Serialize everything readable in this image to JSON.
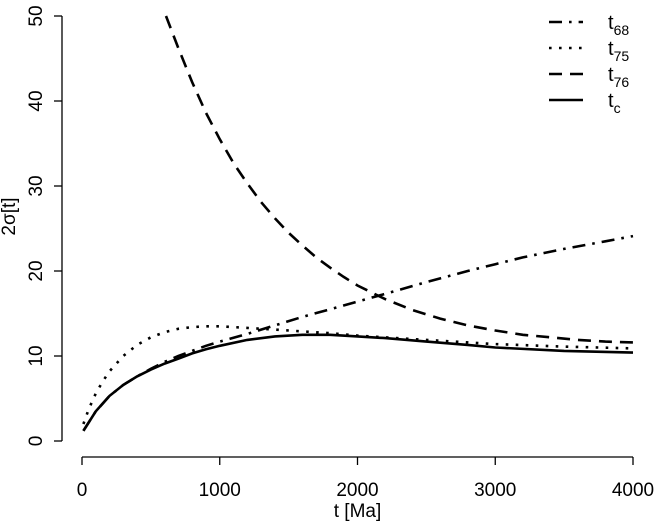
{
  "chart_data": {
    "type": "line",
    "xlabel": "t [Ma]",
    "ylabel": "2σ[t]",
    "xlim": [
      0,
      4000
    ],
    "ylim": [
      0,
      50
    ],
    "xticks": [
      0,
      1000,
      2000,
      3000,
      4000
    ],
    "yticks": [
      0,
      10,
      20,
      30,
      40,
      50
    ],
    "legend_position": "top-right",
    "grid": false,
    "series": [
      {
        "name": "t68",
        "name_base": "t",
        "name_sub": "68",
        "dash": "dash-dot",
        "x": [
          10,
          100,
          200,
          300,
          400,
          500,
          600,
          700,
          800,
          900,
          1000,
          1200,
          1400,
          1600,
          1800,
          2000,
          2200,
          2500,
          2800,
          3000,
          3200,
          3500,
          3800,
          4000
        ],
        "y": [
          1.2,
          3.5,
          5.3,
          6.6,
          7.6,
          8.5,
          9.3,
          10.0,
          10.6,
          11.2,
          11.7,
          12.6,
          13.6,
          14.6,
          15.5,
          16.4,
          17.3,
          18.7,
          20.0,
          20.8,
          21.6,
          22.6,
          23.5,
          24.1
        ]
      },
      {
        "name": "t75",
        "name_base": "t",
        "name_sub": "75",
        "dash": "dotted",
        "x": [
          10,
          50,
          100,
          150,
          200,
          300,
          400,
          500,
          600,
          700,
          800,
          900,
          1000,
          1200,
          1400,
          1600,
          1800,
          2000,
          2500,
          3000,
          3500,
          4000
        ],
        "y": [
          2.0,
          3.8,
          5.6,
          7.0,
          8.2,
          10.0,
          11.3,
          12.2,
          12.8,
          13.2,
          13.4,
          13.5,
          13.5,
          13.3,
          13.1,
          12.9,
          12.7,
          12.4,
          11.9,
          11.4,
          11.1,
          10.9
        ]
      },
      {
        "name": "t76",
        "name_base": "t",
        "name_sub": "76",
        "dash": "dashed",
        "x": [
          610,
          700,
          800,
          900,
          1000,
          1100,
          1200,
          1300,
          1400,
          1500,
          1600,
          1700,
          1800,
          1900,
          2000,
          2200,
          2400,
          2600,
          2800,
          3000,
          3200,
          3400,
          3600,
          3800,
          4000
        ],
        "y": [
          50.0,
          46.2,
          42.2,
          38.6,
          35.5,
          32.7,
          30.3,
          28.1,
          26.2,
          24.5,
          23.0,
          21.6,
          20.4,
          19.3,
          18.3,
          16.7,
          15.4,
          14.4,
          13.6,
          13.0,
          12.5,
          12.2,
          11.9,
          11.7,
          11.6
        ]
      },
      {
        "name": "tc",
        "name_base": "t",
        "name_sub": "c",
        "dash": "solid",
        "x": [
          10,
          100,
          200,
          300,
          400,
          500,
          600,
          700,
          800,
          900,
          1000,
          1200,
          1400,
          1600,
          1800,
          2000,
          2200,
          2500,
          2800,
          3000,
          3500,
          4000
        ],
        "y": [
          1.2,
          3.5,
          5.3,
          6.6,
          7.6,
          8.4,
          9.1,
          9.7,
          10.3,
          10.8,
          11.2,
          11.9,
          12.3,
          12.5,
          12.5,
          12.3,
          12.1,
          11.7,
          11.3,
          11.0,
          10.6,
          10.4
        ]
      }
    ]
  }
}
